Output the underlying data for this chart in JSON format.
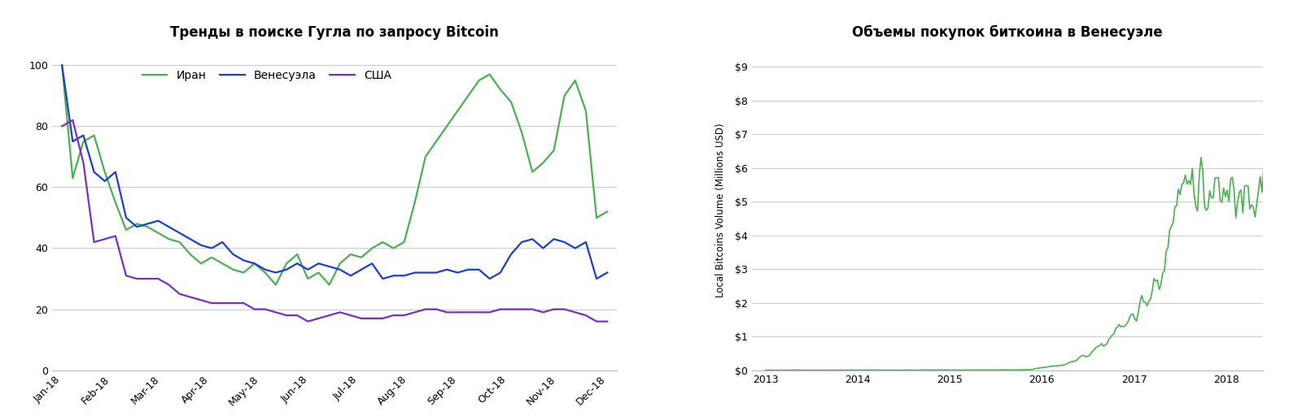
{
  "chart1_title": "Тренды в поиске Гугла по запросу Bitcoin",
  "chart1_legend": [
    "Иран",
    "Венесуэла",
    "США"
  ],
  "chart1_colors": [
    "#4caf50",
    "#1a3fcc",
    "#7b2fbe"
  ],
  "chart1_xticks": [
    "Jan-18",
    "Feb-18",
    "Mar-18",
    "Apr-18",
    "May-18",
    "Jun-18",
    "Jul-18",
    "Aug-18",
    "Sep-18",
    "Oct-18",
    "Nov-18",
    "Dec-18"
  ],
  "chart1_ylim": [
    0,
    105
  ],
  "chart1_yticks": [
    0,
    20,
    40,
    60,
    80,
    100
  ],
  "iran": [
    100,
    63,
    75,
    77,
    65,
    55,
    46,
    48,
    47,
    45,
    43,
    42,
    38,
    35,
    37,
    35,
    33,
    32,
    35,
    32,
    28,
    35,
    38,
    30,
    32,
    28,
    35,
    38,
    37,
    40,
    42,
    40,
    42,
    55,
    70,
    75,
    80,
    85,
    90,
    95,
    97,
    92,
    88,
    78,
    65,
    68,
    72,
    90,
    95,
    85,
    50,
    52
  ],
  "venezuela": [
    100,
    75,
    77,
    65,
    62,
    65,
    50,
    47,
    48,
    49,
    47,
    45,
    43,
    41,
    40,
    42,
    38,
    36,
    35,
    33,
    32,
    33,
    35,
    33,
    35,
    34,
    33,
    31,
    33,
    35,
    30,
    31,
    31,
    32,
    32,
    32,
    33,
    32,
    33,
    33,
    30,
    32,
    38,
    42,
    43,
    40,
    43,
    42,
    40,
    42,
    30,
    32
  ],
  "usa": [
    80,
    82,
    68,
    42,
    43,
    44,
    31,
    30,
    30,
    30,
    28,
    25,
    24,
    23,
    22,
    22,
    22,
    22,
    20,
    20,
    19,
    18,
    18,
    16,
    17,
    18,
    19,
    18,
    17,
    17,
    17,
    18,
    18,
    19,
    20,
    20,
    19,
    19,
    19,
    19,
    19,
    20,
    20,
    20,
    20,
    19,
    20,
    20,
    19,
    18,
    16,
    16
  ],
  "chart2_title": "Объемы покупок биткоина в Венесуэле",
  "chart2_ylabel": "Local Bitcoins Volume (Millions USD)",
  "chart2_color": "#4caf50",
  "chart2_xticks": [
    "2013",
    "2014",
    "2015",
    "2016",
    "2017",
    "2018"
  ],
  "chart2_yticks": [
    0,
    1,
    2,
    3,
    4,
    5,
    6,
    7,
    8,
    9
  ],
  "chart2_ylim": [
    0,
    9.5
  ],
  "bg_color": "#ffffff",
  "grid_color": "#cccccc"
}
